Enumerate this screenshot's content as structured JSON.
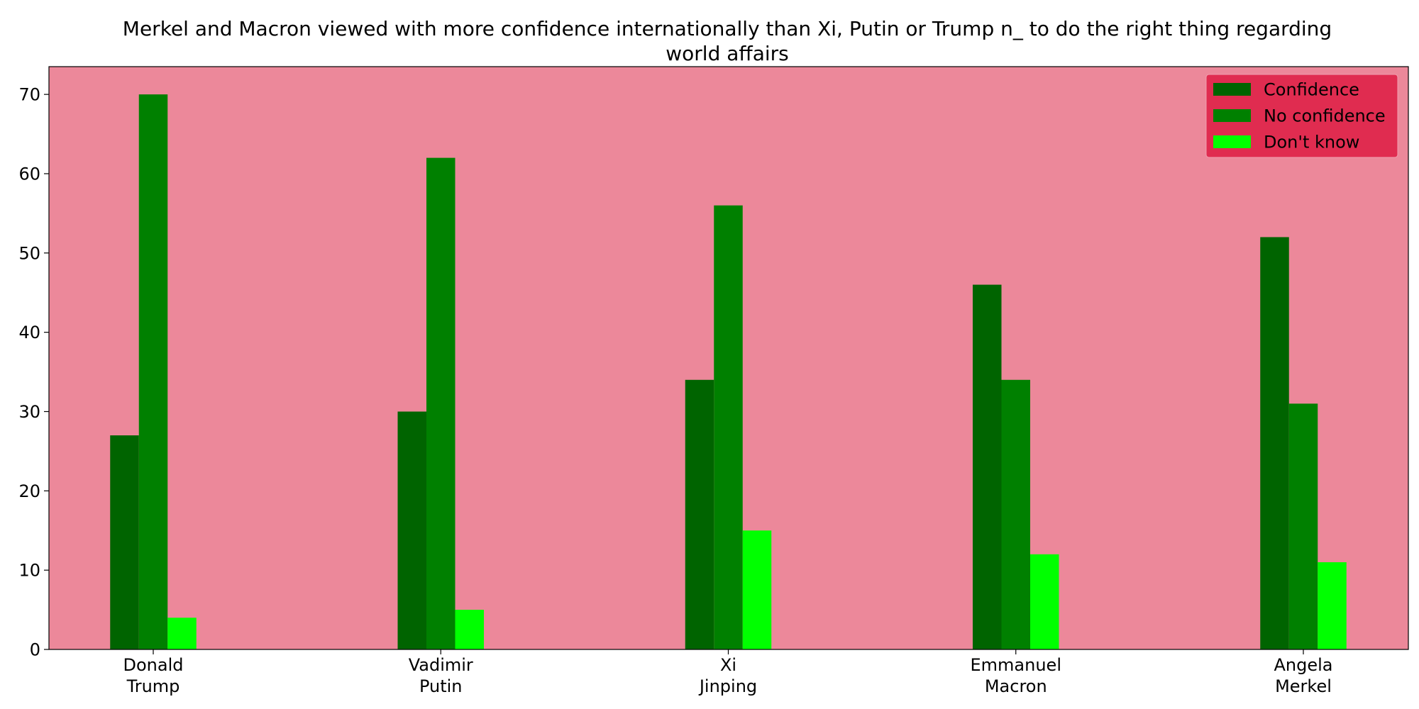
{
  "chart_data": {
    "type": "bar",
    "title_lines": [
      "Merkel and Macron viewed with more confidence internationally than Xi, Putin or Trump n_ to do the right thing regarding",
      "world affairs"
    ],
    "categories": [
      [
        "Donald",
        "Trump"
      ],
      [
        "Vadimir",
        "Putin"
      ],
      [
        "Xi",
        "Jinping"
      ],
      [
        "Emmanuel",
        "Macron"
      ],
      [
        "Angela",
        "Merkel"
      ]
    ],
    "series": [
      {
        "name": "Confidence",
        "color": "#006400",
        "values": [
          27,
          30,
          34,
          46,
          52
        ]
      },
      {
        "name": "No confidence",
        "color": "#008000",
        "values": [
          70,
          62,
          56,
          34,
          31
        ]
      },
      {
        "name": "Don't know",
        "color": "#00ff00",
        "values": [
          4,
          5,
          15,
          12,
          11
        ]
      }
    ],
    "ylim": [
      0,
      73.5
    ],
    "yticks": [
      0,
      10,
      20,
      30,
      40,
      50,
      60,
      70
    ],
    "xlabel": "",
    "ylabel": "",
    "legend_position": "top-right",
    "grid": false,
    "colors": {
      "plot_background": "#ec889a",
      "legend_background": "#e02c50"
    }
  }
}
